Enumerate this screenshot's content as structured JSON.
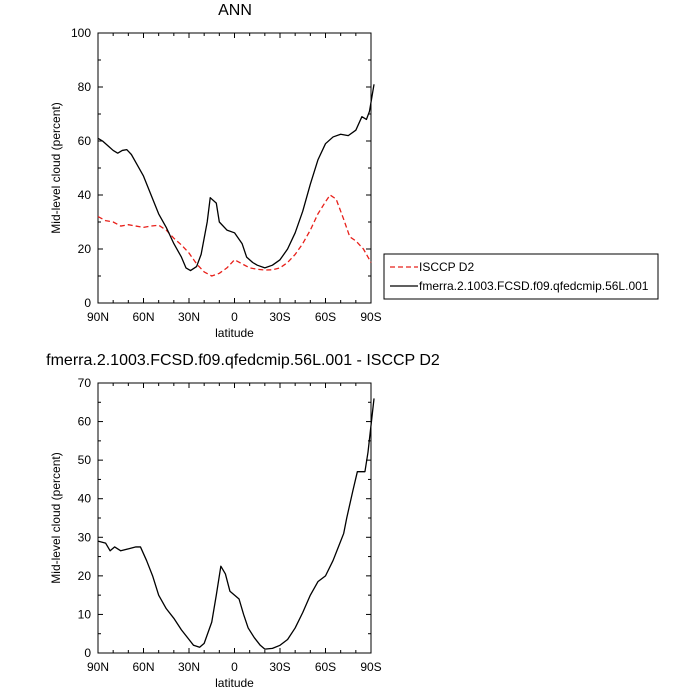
{
  "chart_data": [
    {
      "type": "line",
      "title": "ANN",
      "xlabel": "latitude",
      "ylabel": "Mid-level cloud (percent)",
      "xlim": [
        90,
        -90
      ],
      "ylim": [
        0,
        100
      ],
      "x_ticks": [
        "90N",
        "60N",
        "30N",
        "0",
        "30S",
        "60S",
        "90S"
      ],
      "y_ticks": [
        "0",
        "20",
        "40",
        "60",
        "80",
        "100"
      ],
      "legend_position": "right",
      "series": [
        {
          "name": "ISCCP D2",
          "color": "#e8201a",
          "dash": "dashed",
          "points": [
            [
              90,
              32
            ],
            [
              85,
              30.5
            ],
            [
              80,
              30
            ],
            [
              75,
              28.5
            ],
            [
              70,
              29
            ],
            [
              65,
              28.5
            ],
            [
              60,
              28
            ],
            [
              55,
              28.5
            ],
            [
              50,
              28.8
            ],
            [
              45,
              27
            ],
            [
              40,
              24
            ],
            [
              35,
              21.5
            ],
            [
              30,
              18.5
            ],
            [
              25,
              14.5
            ],
            [
              20,
              11.5
            ],
            [
              15,
              10
            ],
            [
              10,
              11
            ],
            [
              5,
              13
            ],
            [
              0,
              16
            ],
            [
              -5,
              14.5
            ],
            [
              -10,
              13
            ],
            [
              -15,
              12.5
            ],
            [
              -20,
              12.2
            ],
            [
              -25,
              12.3
            ],
            [
              -30,
              13
            ],
            [
              -35,
              15
            ],
            [
              -40,
              18
            ],
            [
              -45,
              22
            ],
            [
              -50,
              27
            ],
            [
              -55,
              33
            ],
            [
              -60,
              37.5
            ],
            [
              -63,
              40
            ],
            [
              -67,
              38.5
            ],
            [
              -72,
              31
            ],
            [
              -76,
              24.5
            ],
            [
              -80,
              23
            ],
            [
              -85,
              20
            ],
            [
              -90,
              15
            ]
          ]
        },
        {
          "name": "fmerra.2.1003.FCSD.f09.qfedcmip.56L.001",
          "color": "#000000",
          "dash": "solid",
          "points": [
            [
              90,
              61
            ],
            [
              87,
              60
            ],
            [
              83,
              58
            ],
            [
              80,
              56.5
            ],
            [
              77,
              55.5
            ],
            [
              74,
              56.5
            ],
            [
              71,
              56.8
            ],
            [
              68,
              55
            ],
            [
              65,
              52
            ],
            [
              60,
              47
            ],
            [
              55,
              40
            ],
            [
              50,
              33
            ],
            [
              45,
              28
            ],
            [
              40,
              22
            ],
            [
              35,
              17
            ],
            [
              32,
              13
            ],
            [
              29,
              12
            ],
            [
              25,
              13.5
            ],
            [
              22,
              18
            ],
            [
              18,
              30
            ],
            [
              16,
              39
            ],
            [
              12,
              37
            ],
            [
              10,
              30
            ],
            [
              5,
              27
            ],
            [
              0,
              26
            ],
            [
              -5,
              22
            ],
            [
              -8,
              17
            ],
            [
              -12,
              15
            ],
            [
              -15,
              14
            ],
            [
              -20,
              13
            ],
            [
              -25,
              14
            ],
            [
              -30,
              16
            ],
            [
              -35,
              20
            ],
            [
              -40,
              26
            ],
            [
              -45,
              34
            ],
            [
              -50,
              44
            ],
            [
              -55,
              53
            ],
            [
              -60,
              59
            ],
            [
              -65,
              61.5
            ],
            [
              -70,
              62.5
            ],
            [
              -75,
              62
            ],
            [
              -80,
              64
            ],
            [
              -84,
              69
            ],
            [
              -87,
              68
            ],
            [
              -89,
              71
            ],
            [
              -92,
              81
            ]
          ]
        }
      ]
    },
    {
      "type": "line",
      "title": "fmerra.2.1003.FCSD.f09.qfedcmip.56L.001 - ISCCP D2",
      "xlabel": "latitude",
      "ylabel": "Mid-level cloud (percent)",
      "xlim": [
        90,
        -90
      ],
      "ylim": [
        0,
        70
      ],
      "x_ticks": [
        "90N",
        "60N",
        "30N",
        "0",
        "30S",
        "60S",
        "90S"
      ],
      "y_ticks": [
        "0",
        "10",
        "20",
        "30",
        "40",
        "50",
        "60",
        "70"
      ],
      "series": [
        {
          "color": "#000000",
          "dash": "solid",
          "points": [
            [
              90,
              29
            ],
            [
              85,
              28.5
            ],
            [
              82,
              26.5
            ],
            [
              79,
              27.5
            ],
            [
              75,
              26.5
            ],
            [
              70,
              27
            ],
            [
              65,
              27.5
            ],
            [
              62,
              27.5
            ],
            [
              58,
              24
            ],
            [
              54,
              20
            ],
            [
              50,
              15
            ],
            [
              45,
              11.5
            ],
            [
              40,
              9
            ],
            [
              35,
              6
            ],
            [
              30,
              3.5
            ],
            [
              27,
              2
            ],
            [
              23,
              1.5
            ],
            [
              20,
              2.5
            ],
            [
              15,
              8
            ],
            [
              12,
              15
            ],
            [
              9,
              22.5
            ],
            [
              6,
              20.5
            ],
            [
              3,
              16
            ],
            [
              0,
              15
            ],
            [
              -3,
              14
            ],
            [
              -6,
              10
            ],
            [
              -9,
              6.5
            ],
            [
              -13,
              4
            ],
            [
              -17,
              2
            ],
            [
              -20,
              1
            ],
            [
              -25,
              1.2
            ],
            [
              -30,
              2
            ],
            [
              -35,
              3.5
            ],
            [
              -40,
              6.5
            ],
            [
              -45,
              10.5
            ],
            [
              -50,
              15
            ],
            [
              -55,
              18.5
            ],
            [
              -60,
              20
            ],
            [
              -65,
              24
            ],
            [
              -68,
              27
            ],
            [
              -72,
              31
            ],
            [
              -74,
              35
            ],
            [
              -78,
              42
            ],
            [
              -81,
              47
            ],
            [
              -86,
              47
            ],
            [
              -88,
              52
            ],
            [
              -90,
              59
            ],
            [
              -92,
              66
            ]
          ]
        }
      ]
    }
  ]
}
